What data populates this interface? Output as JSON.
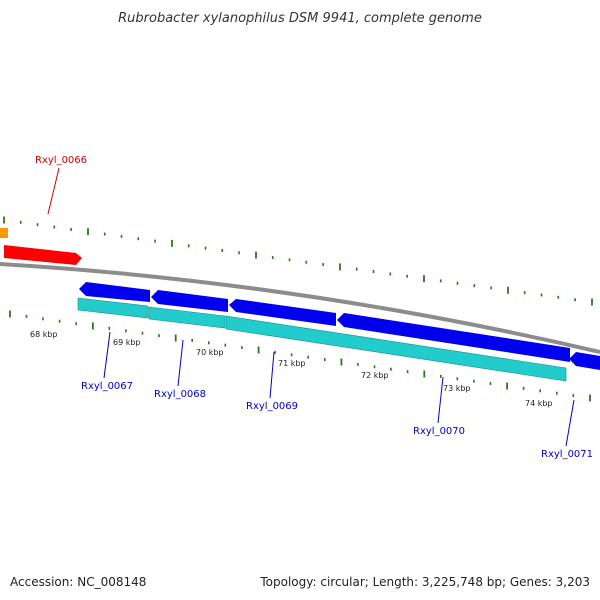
{
  "header": {
    "title": "Rubrobacter xylanophilus DSM 9941, complete genome"
  },
  "footer": {
    "accession": "Accession: NC_008148",
    "summary": "Topology: circular; Length: 3,225,748 bp; Genes: 3,203"
  },
  "colors": {
    "backbone": "#8c8c8c",
    "tick": "#2a7a1a",
    "forward_gene": "#ff0000",
    "forward_gene_neighbor": "#ff9900",
    "reverse_gene": "#0000ee",
    "cds": "#22cccc",
    "forward_label": "#cc0000",
    "reverse_label": "#0000cc"
  },
  "scale": {
    "labels": [
      {
        "kbp": 68,
        "text": "68 kbp"
      },
      {
        "kbp": 69,
        "text": "69 kbp"
      },
      {
        "kbp": 70,
        "text": "70 kbp"
      },
      {
        "kbp": 71,
        "text": "71 kbp"
      },
      {
        "kbp": 72,
        "text": "72 kbp"
      },
      {
        "kbp": 73,
        "text": "73 kbp"
      },
      {
        "kbp": 74,
        "text": "74 kbp"
      }
    ]
  },
  "genes": [
    {
      "id": "Rxyl_0066",
      "label": "Rxyl_0066",
      "strand": "+"
    },
    {
      "id": "Rxyl_0067",
      "label": "Rxyl_0067",
      "strand": "-"
    },
    {
      "id": "Rxyl_0068",
      "label": "Rxyl_0068",
      "strand": "-"
    },
    {
      "id": "Rxyl_0069",
      "label": "Rxyl_0069",
      "strand": "-"
    },
    {
      "id": "Rxyl_0070",
      "label": "Rxyl_0070",
      "strand": "-"
    },
    {
      "id": "Rxyl_0071",
      "label": "Rxyl_0071",
      "strand": "-"
    }
  ]
}
